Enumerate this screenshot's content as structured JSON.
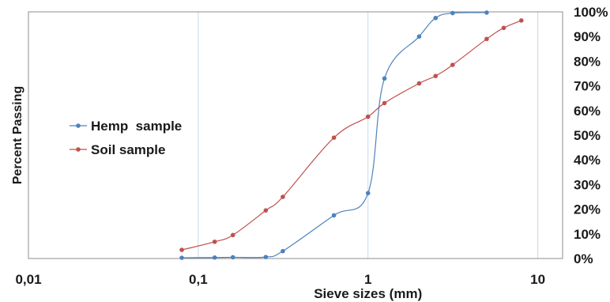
{
  "chart_data": {
    "type": "line",
    "xscale": "log",
    "xlim": [
      0.01,
      14
    ],
    "ylim": [
      0,
      100
    ],
    "xticks": [
      "0,01",
      "0,1",
      "1",
      "10"
    ],
    "xtick_values": [
      0.01,
      0.1,
      1,
      10
    ],
    "yticks": [
      "0%",
      "10%",
      "20%",
      "30%",
      "40%",
      "50%",
      "60%",
      "70%",
      "80%",
      "90%",
      "100%"
    ],
    "ytick_values": [
      0,
      10,
      20,
      30,
      40,
      50,
      60,
      70,
      80,
      90,
      100
    ],
    "xlabel": "Sieve sizes (mm)",
    "ylabel": "Percent Passing",
    "grid": true,
    "legend_position": "left",
    "yaxis_side": "right",
    "series": [
      {
        "name": "Hemp  sample",
        "color": "#4f81bd",
        "points": [
          [
            0.08,
            0.3
          ],
          [
            0.125,
            0.4
          ],
          [
            0.16,
            0.5
          ],
          [
            0.25,
            0.6
          ],
          [
            0.315,
            3
          ],
          [
            0.63,
            17.5
          ],
          [
            1.0,
            26.5
          ],
          [
            1.25,
            73
          ],
          [
            2.0,
            90
          ],
          [
            2.5,
            97.5
          ],
          [
            3.15,
            99.5
          ],
          [
            5.0,
            99.7
          ]
        ]
      },
      {
        "name": "Soil sample",
        "color": "#c0504d",
        "points": [
          [
            0.08,
            3.5
          ],
          [
            0.125,
            6.8
          ],
          [
            0.16,
            9.5
          ],
          [
            0.25,
            19.5
          ],
          [
            0.315,
            25
          ],
          [
            0.63,
            49
          ],
          [
            1.0,
            57.5
          ],
          [
            1.25,
            63
          ],
          [
            2.0,
            71
          ],
          [
            2.5,
            74
          ],
          [
            3.15,
            78.5
          ],
          [
            5.0,
            89
          ],
          [
            6.3,
            93.5
          ],
          [
            8.0,
            96.5
          ]
        ]
      }
    ]
  }
}
